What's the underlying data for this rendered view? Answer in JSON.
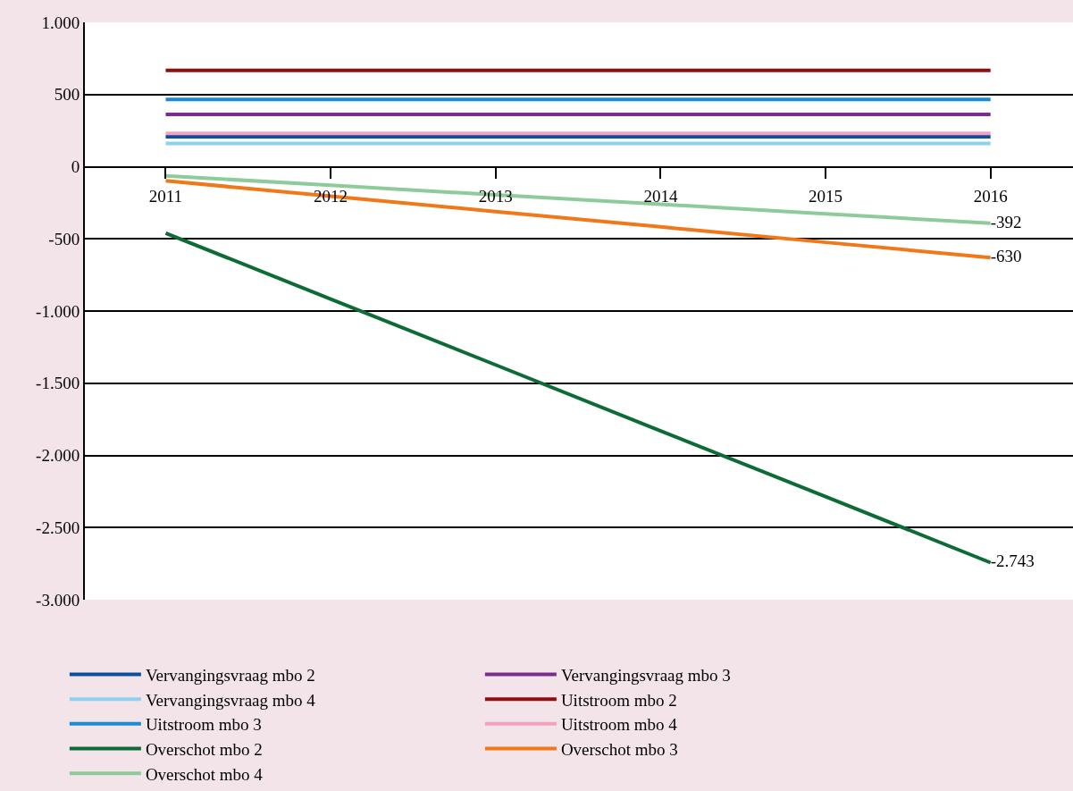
{
  "chart_data": {
    "type": "line",
    "categories": [
      "2011",
      "2012",
      "2013",
      "2014",
      "2015",
      "2016"
    ],
    "series": [
      {
        "name": "Vervangingsvraag mbo 2",
        "color": "#0b4f9c",
        "values": [
          207,
          207,
          207,
          207,
          207,
          207
        ]
      },
      {
        "name": "Vervangingsvraag mbo 3",
        "color": "#7b2d8e",
        "values": [
          362,
          362,
          362,
          362,
          362,
          362
        ]
      },
      {
        "name": "Vervangingsvraag mbo 4",
        "color": "#8fcff0",
        "values": [
          161,
          161,
          161,
          161,
          161,
          161
        ]
      },
      {
        "name": "Uitstroom mbo 2",
        "color": "#8b1010",
        "values": [
          667,
          667,
          667,
          667,
          667,
          667
        ]
      },
      {
        "name": "Uitstroom mbo 3",
        "color": "#1a8ad4",
        "values": [
          466,
          466,
          466,
          466,
          466,
          466
        ]
      },
      {
        "name": "Uitstroom mbo 4",
        "color": "#f4a0c0",
        "values": [
          230,
          230,
          230,
          230,
          230,
          230
        ]
      },
      {
        "name": "Overschot mbo 2",
        "color": "#0d6b36",
        "values": [
          -460,
          -917,
          -1373,
          -1830,
          -2286,
          -2743
        ],
        "value_labels": [
          null,
          null,
          null,
          null,
          null,
          "-2.743"
        ]
      },
      {
        "name": "Overschot mbo 3",
        "color": "#f07818",
        "values": [
          -98,
          -204,
          -311,
          -417,
          -524,
          -630
        ],
        "value_labels": [
          null,
          null,
          null,
          null,
          null,
          "-630"
        ]
      },
      {
        "name": "Overschot mbo 4",
        "color": "#8ecb9a",
        "values": [
          -63,
          -129,
          -195,
          -260,
          -326,
          -392
        ],
        "value_labels": [
          null,
          null,
          null,
          null,
          null,
          "-392"
        ]
      }
    ],
    "ylim": [
      -3000,
      1000
    ],
    "yticks": [
      {
        "value": 1000,
        "label": "1.000"
      },
      500,
      0,
      -500,
      {
        "value": -1000,
        "label": "-1.000"
      },
      {
        "value": -1500,
        "label": "-1.500"
      },
      {
        "value": -2000,
        "label": "-2.000"
      },
      {
        "value": -2500,
        "label": "-2.500"
      },
      {
        "value": -3000,
        "label": "-3.000"
      }
    ],
    "grid": "y",
    "legend": "bottom",
    "marker": "none",
    "line_style": "solid"
  }
}
